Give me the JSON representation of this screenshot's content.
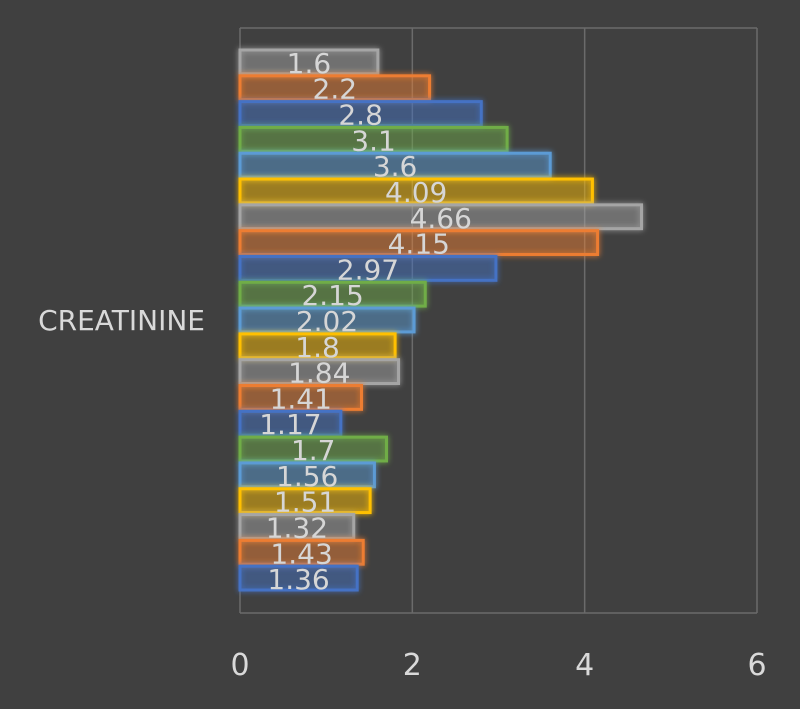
{
  "chart_data": {
    "type": "bar",
    "orientation": "horizontal",
    "category": "CREATININE",
    "values": [
      1.6,
      2.2,
      2.8,
      3.1,
      3.6,
      4.09,
      4.66,
      4.15,
      2.97,
      2.15,
      2.02,
      1.8,
      1.84,
      1.41,
      1.17,
      1.7,
      1.56,
      1.51,
      1.32,
      1.43,
      1.36
    ],
    "labels": [
      "1.6",
      "2.2",
      "2.8",
      "3.1",
      "3.6",
      "4.09",
      "4.66",
      "4.15",
      "2.97",
      "2.15",
      "2.02",
      "1.8",
      "1.84",
      "1.41",
      "1.17",
      "1.7",
      "1.56",
      "1.51",
      "1.32",
      "1.43",
      "1.36"
    ],
    "colors": [
      "#a5a5a5",
      "#ed7d31",
      "#4472c4",
      "#70ad47",
      "#5b9bd5",
      "#ffc000",
      "#a5a5a5",
      "#ed7d31",
      "#4472c4",
      "#70ad47",
      "#5b9bd5",
      "#ffc000",
      "#a5a5a5",
      "#ed7d31",
      "#4472c4",
      "#70ad47",
      "#5b9bd5",
      "#ffc000",
      "#a5a5a5",
      "#ed7d31",
      "#4472c4"
    ],
    "x_ticks": [
      "0",
      "2",
      "4",
      "6"
    ],
    "xlim": [
      0,
      6
    ],
    "grid": true,
    "legend": "none",
    "title": "",
    "xlabel": "",
    "ylabel": ""
  }
}
